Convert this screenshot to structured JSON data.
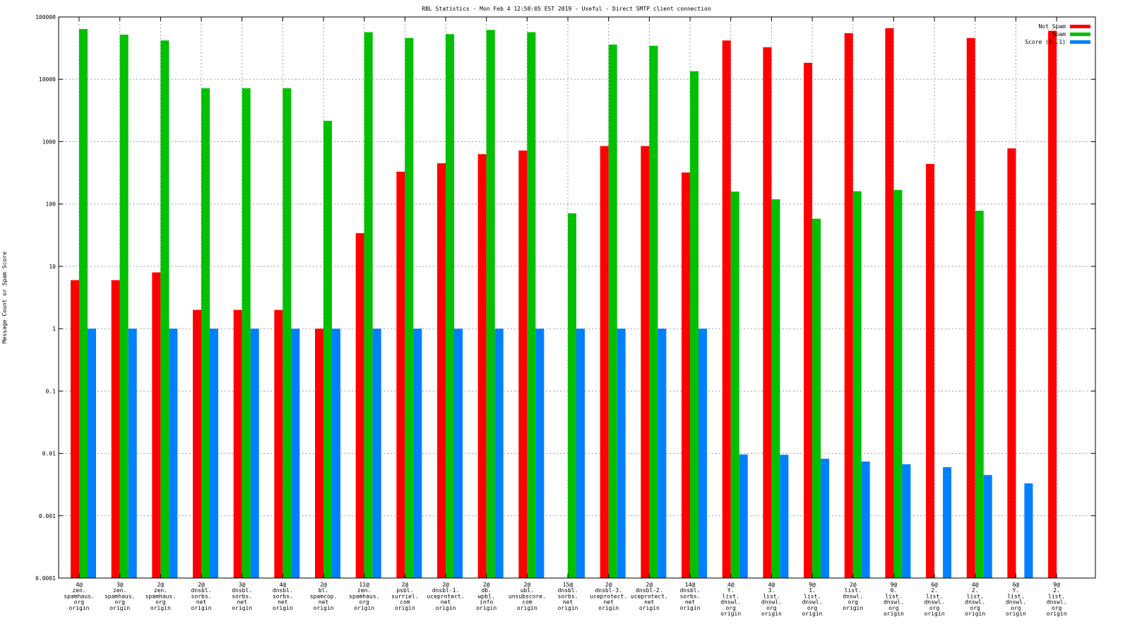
{
  "chart_data": {
    "type": "bar",
    "title": "RBL Statistics - Mon Feb  4 12:58:05 EST 2019 - Useful - Direct SMTP client connection",
    "xlabel": "",
    "ylabel": "Message Count or Spam Score",
    "yscale": "log",
    "ylim": [
      0.0001,
      100000
    ],
    "yticks": [
      "0.0001",
      "0.001",
      "0.01",
      "0.1",
      "1",
      "10",
      "100",
      "1000",
      "10000",
      "100000"
    ],
    "grid": true,
    "legend_position": "top-right",
    "categories": [
      [
        "4@",
        "zen.",
        "spamhaus.",
        "org",
        "origin"
      ],
      [
        "3@",
        "zen.",
        "spamhaus.",
        "org",
        "origin"
      ],
      [
        "2@",
        "zen.",
        "spamhaus.",
        "org",
        "origin"
      ],
      [
        "2@",
        "dnsbl.",
        "sorbs.",
        "net",
        "origin"
      ],
      [
        "3@",
        "dnsbl.",
        "sorbs.",
        "net",
        "origin"
      ],
      [
        "4@",
        "dnsbl.",
        "sorbs.",
        "net",
        "origin"
      ],
      [
        "2@",
        "bl.",
        "spamcop.",
        "net",
        "origin"
      ],
      [
        "11@",
        "zen.",
        "spamhaus.",
        "org",
        "origin"
      ],
      [
        "2@",
        "psbl.",
        "surriel.",
        "com",
        "origin"
      ],
      [
        "2@",
        "dnsbl-1.",
        "uceprotect.",
        "net",
        "origin"
      ],
      [
        "2@",
        "db.",
        "wpbl.",
        "info",
        "origin"
      ],
      [
        "2@",
        "ubl.",
        "unsubscore.",
        "com",
        "origin"
      ],
      [
        "15@",
        "dnsbl.",
        "sorbs.",
        "net",
        "origin"
      ],
      [
        "2@",
        "dnsbl-3.",
        "uceprotect.",
        "net",
        "origin"
      ],
      [
        "2@",
        "dnsbl-2.",
        "uceprotect.",
        "net",
        "origin"
      ],
      [
        "14@",
        "dnsbl.",
        "sorbs.",
        "net",
        "origin"
      ],
      [
        "4@",
        "Y.",
        "list.",
        "dnswl.",
        "org",
        "origin"
      ],
      [
        "4@",
        "3.",
        "list.",
        "dnswl.",
        "org",
        "origin"
      ],
      [
        "9@",
        "1.",
        "list.",
        "dnswl.",
        "org",
        "origin"
      ],
      [
        "2@",
        "list.",
        "dnswl.",
        "org",
        "origin"
      ],
      [
        "9@",
        "0.",
        "list.",
        "dnswl.",
        "org",
        "origin"
      ],
      [
        "6@",
        "2.",
        "list.",
        "dnswl.",
        "org",
        "origin"
      ],
      [
        "4@",
        "2.",
        "list.",
        "dnswl.",
        "org",
        "origin"
      ],
      [
        "6@",
        "Y.",
        "list.",
        "dnswl.",
        "org",
        "origin"
      ],
      [
        "9@",
        "2.",
        "list.",
        "dnswl.",
        "org",
        "origin"
      ]
    ],
    "series": [
      {
        "name": "Not Spam",
        "color": "#ff0000",
        "values": [
          6,
          6,
          8,
          2,
          2,
          2,
          1,
          34,
          330,
          450,
          630,
          720,
          null,
          850,
          850,
          320,
          42000,
          32700,
          18400,
          55000,
          66000,
          440,
          46000,
          780,
          60000
        ]
      },
      {
        "name": "Spam",
        "color": "#00c000",
        "values": [
          64000,
          52000,
          42000,
          7200,
          7200,
          7200,
          2160,
          57000,
          46000,
          53000,
          62000,
          57000,
          71,
          36000,
          34500,
          13500,
          158,
          119,
          58,
          160,
          168,
          null,
          78,
          null,
          null
        ]
      },
      {
        "name": "Score (0..1)",
        "color": "#0080ff",
        "values": [
          1,
          1,
          1,
          1,
          1,
          1,
          1,
          1,
          1,
          1,
          1,
          1,
          1,
          1,
          1,
          1,
          0.0096,
          0.0095,
          0.0082,
          0.0074,
          0.0067,
          0.006,
          0.0045,
          0.0033,
          null
        ]
      }
    ]
  }
}
